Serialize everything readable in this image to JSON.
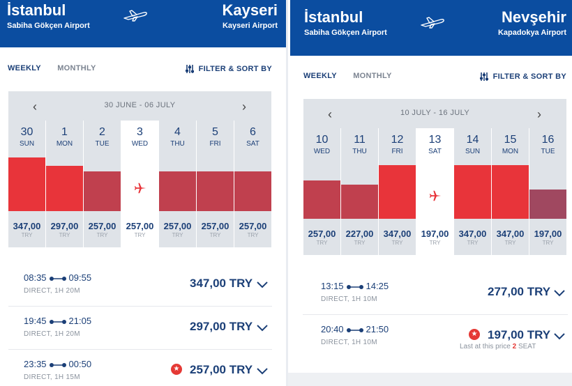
{
  "colors": {
    "header_bg": "#0b4da0",
    "bar_high": "#e8343a",
    "bar_mid": "#c0404e",
    "bar_low": "#a04860",
    "text_primary": "#1b3f77"
  },
  "panels": [
    {
      "from_city": "İstanbul",
      "from_airport": "Sabiha Gökçen Airport",
      "to_city": "Kayseri",
      "to_airport": "Kayseri Airport",
      "tab_weekly": "WEEKLY",
      "tab_monthly": "MONTHLY",
      "filter_label": "FILTER & SORT BY",
      "date_range": "30 JUNE - 06 JULY",
      "days": [
        {
          "num": "30",
          "name": "SUN",
          "price": "347,00",
          "cur": "TRY",
          "level": 1.0,
          "tone": "high"
        },
        {
          "num": "1",
          "name": "MON",
          "price": "297,00",
          "cur": "TRY",
          "level": 0.85,
          "tone": "high"
        },
        {
          "num": "2",
          "name": "TUE",
          "price": "257,00",
          "cur": "TRY",
          "level": 0.74,
          "tone": "mid"
        },
        {
          "num": "3",
          "name": "WED",
          "price": "257,00",
          "cur": "TRY",
          "level": 0,
          "tone": "selected"
        },
        {
          "num": "4",
          "name": "THU",
          "price": "257,00",
          "cur": "TRY",
          "level": 0.74,
          "tone": "mid"
        },
        {
          "num": "5",
          "name": "FRI",
          "price": "257,00",
          "cur": "TRY",
          "level": 0.74,
          "tone": "mid"
        },
        {
          "num": "6",
          "name": "SAT",
          "price": "257,00",
          "cur": "TRY",
          "level": 0.74,
          "tone": "mid"
        }
      ],
      "flights": [
        {
          "dep": "08:35",
          "arr": "09:55",
          "info": "DIRECT, 1H 20M",
          "price": "347,00 TRY",
          "star": false
        },
        {
          "dep": "19:45",
          "arr": "21:05",
          "info": "DIRECT, 1H 20M",
          "price": "297,00 TRY",
          "star": false
        },
        {
          "dep": "23:35",
          "arr": "00:50",
          "info": "DIRECT, 1H 15M",
          "price": "257,00 TRY",
          "star": true
        }
      ]
    },
    {
      "from_city": "İstanbul",
      "from_airport": "Sabiha Gökçen Airport",
      "to_city": "Nevşehir",
      "to_airport": "Kapadokya Airport",
      "tab_weekly": "WEEKLY",
      "tab_monthly": "MONTHLY",
      "filter_label": "FILTER & SORT BY",
      "date_range": "10 JULY - 16 JULY",
      "days": [
        {
          "num": "10",
          "name": "WED",
          "price": "257,00",
          "cur": "TRY",
          "level": 0.72,
          "tone": "mid"
        },
        {
          "num": "11",
          "name": "THU",
          "price": "227,00",
          "cur": "TRY",
          "level": 0.64,
          "tone": "mid"
        },
        {
          "num": "12",
          "name": "FRI",
          "price": "347,00",
          "cur": "TRY",
          "level": 1.0,
          "tone": "high"
        },
        {
          "num": "13",
          "name": "SAT",
          "price": "197,00",
          "cur": "TRY",
          "level": 0,
          "tone": "selected"
        },
        {
          "num": "14",
          "name": "SUN",
          "price": "347,00",
          "cur": "TRY",
          "level": 1.0,
          "tone": "high"
        },
        {
          "num": "15",
          "name": "MON",
          "price": "347,00",
          "cur": "TRY",
          "level": 1.0,
          "tone": "high"
        },
        {
          "num": "16",
          "name": "TUE",
          "price": "197,00",
          "cur": "TRY",
          "level": 0.55,
          "tone": "low"
        }
      ],
      "flights": [
        {
          "dep": "13:15",
          "arr": "14:25",
          "info": "DIRECT, 1H 10M",
          "price": "277,00 TRY",
          "star": false
        },
        {
          "dep": "20:40",
          "arr": "21:50",
          "info": "DIRECT, 1H 10M",
          "price": "197,00 TRY",
          "star": true,
          "note_prefix": "Last at this price",
          "note_count": "2",
          "note_suffix": "SEAT"
        }
      ]
    }
  ]
}
